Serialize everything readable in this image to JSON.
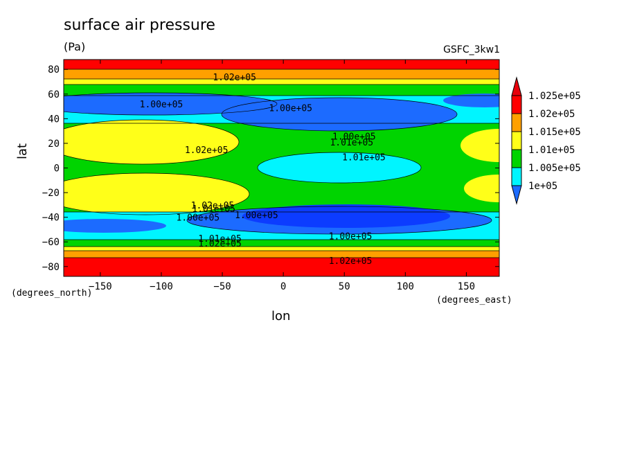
{
  "title": "surface air pressure",
  "units": "(Pa)",
  "dataset": "GSFC_3kw1",
  "lat_units": "(degrees_north)",
  "lon_units": "(degrees_east)",
  "chart_data": {
    "type": "heatmap",
    "title": "surface air pressure",
    "xlabel": "lon",
    "ylabel": "lat",
    "xlim": [
      -180,
      177
    ],
    "ylim": [
      -88,
      88
    ],
    "xticks": [
      -150,
      -100,
      -50,
      0,
      50,
      100,
      150
    ],
    "yticks": [
      -80,
      -60,
      -40,
      -20,
      0,
      20,
      40,
      60,
      80
    ],
    "xtick_labels": [
      "−150",
      "−100",
      "−50",
      "0",
      "50",
      "100",
      "150"
    ],
    "ytick_labels": [
      "−80",
      "−60",
      "−40",
      "−20",
      "0",
      "20",
      "40",
      "60",
      "80"
    ],
    "colorbar": {
      "levels": [
        "1e+05",
        "1.005e+05",
        "1.01e+05",
        "1.015e+05",
        "1.02e+05",
        "1.025e+05"
      ],
      "colors": [
        "#1c6bff",
        "#00f5ff",
        "#00d400",
        "#ffff19",
        "#ffa000",
        "#ff0000",
        "#e8000b"
      ],
      "extend": "both"
    },
    "contour_labels": [
      {
        "text": "1.02e+05",
        "lon": -40,
        "lat": 74
      },
      {
        "text": "1.00e+05",
        "lon": -100,
        "lat": 52
      },
      {
        "text": "1.00e+05",
        "lon": 6,
        "lat": 49
      },
      {
        "text": "1.00e+05",
        "lon": 58,
        "lat": 26
      },
      {
        "text": "1.01e+05",
        "lon": 56,
        "lat": 21
      },
      {
        "text": "1.02e+05",
        "lon": -63,
        "lat": 15
      },
      {
        "text": "1.01e+05",
        "lon": 66,
        "lat": 9
      },
      {
        "text": "1.02e+05",
        "lon": -58,
        "lat": -30
      },
      {
        "text": "1.01e+05",
        "lon": -57,
        "lat": -33
      },
      {
        "text": "1.00e+05",
        "lon": -70,
        "lat": -40
      },
      {
        "text": "1.00e+05",
        "lon": -22,
        "lat": -38
      },
      {
        "text": "1.00e+05",
        "lon": 55,
        "lat": -55
      },
      {
        "text": "1.01e+05",
        "lon": -52,
        "lat": -57
      },
      {
        "text": "1.02e+05",
        "lon": -52,
        "lat": -61
      },
      {
        "text": "1.02e+05",
        "lon": 55,
        "lat": -75
      }
    ]
  }
}
